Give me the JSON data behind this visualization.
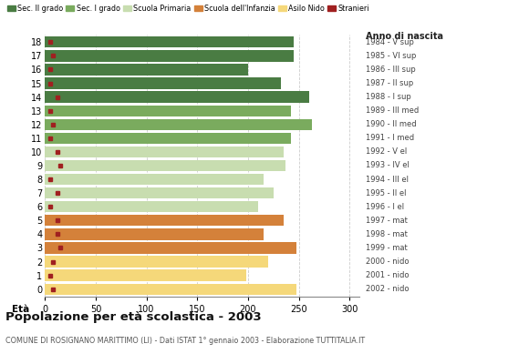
{
  "ages_top_to_bottom": [
    18,
    17,
    16,
    15,
    14,
    13,
    12,
    11,
    10,
    9,
    8,
    7,
    6,
    5,
    4,
    3,
    2,
    1,
    0
  ],
  "bar_values_top_to_bottom": [
    245,
    245,
    200,
    232,
    260,
    242,
    263,
    242,
    235,
    237,
    215,
    225,
    210,
    235,
    215,
    248,
    220,
    198,
    248
  ],
  "stranieri_top_to_bottom": [
    5,
    8,
    5,
    5,
    12,
    5,
    8,
    5,
    12,
    15,
    5,
    12,
    5,
    12,
    12,
    15,
    8,
    5,
    8
  ],
  "anno_nascita_top_to_bottom": [
    "1984 - V sup",
    "1985 - VI sup",
    "1986 - III sup",
    "1987 - II sup",
    "1988 - I sup",
    "1989 - III med",
    "1990 - II med",
    "1991 - I med",
    "1992 - V el",
    "1993 - IV el",
    "1994 - III el",
    "1995 - II el",
    "1996 - I el",
    "1997 - mat",
    "1998 - mat",
    "1999 - mat",
    "2000 - nido",
    "2001 - nido",
    "2002 - nido"
  ],
  "bar_colors_top_to_bottom": [
    "#4a7c43",
    "#4a7c43",
    "#4a7c43",
    "#4a7c43",
    "#4a7c43",
    "#7aab5e",
    "#7aab5e",
    "#7aab5e",
    "#c8ddb0",
    "#c8ddb0",
    "#c8ddb0",
    "#c8ddb0",
    "#c8ddb0",
    "#d4813a",
    "#d4813a",
    "#d4813a",
    "#f5d87a",
    "#f5d87a",
    "#f5d87a"
  ],
  "legend_labels": [
    "Sec. II grado",
    "Sec. I grado",
    "Scuola Primaria",
    "Scuola dell'Infanzia",
    "Asilo Nido",
    "Stranieri"
  ],
  "legend_colors": [
    "#4a7c43",
    "#7aab5e",
    "#c8ddb0",
    "#d4813a",
    "#f5d87a",
    "#a02020"
  ],
  "stranieri_color": "#a02020",
  "title": "Popolazione per età scolastica - 2003",
  "subtitle": "COMUNE DI ROSIGNANO MARITTIMO (LI) - Dati ISTAT 1° gennaio 2003 - Elaborazione TUTTITALIA.IT",
  "eta_label": "Età",
  "anno_label": "Anno di nascita",
  "xlim": [
    0,
    310
  ],
  "xticks": [
    0,
    50,
    100,
    150,
    200,
    250,
    300
  ],
  "grid_color": "#cccccc",
  "bg_color": "#ffffff",
  "bar_height": 0.82
}
